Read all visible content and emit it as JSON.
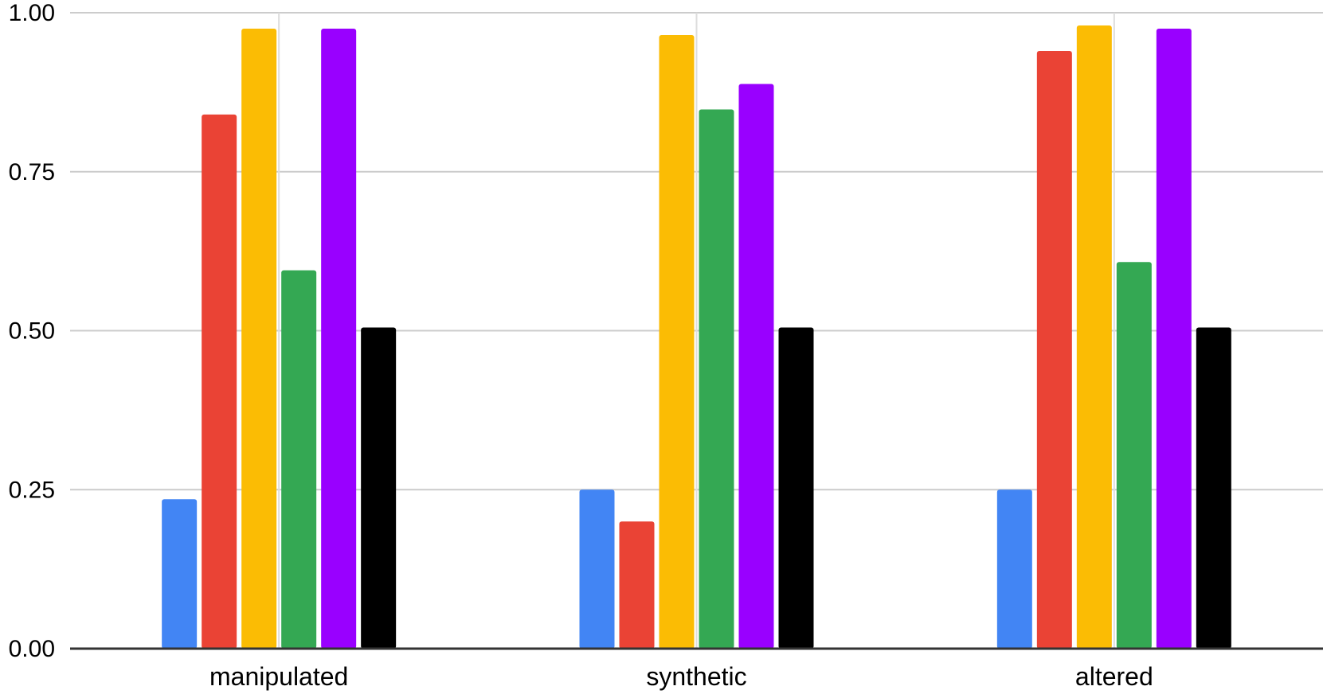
{
  "chart_data": {
    "type": "bar",
    "categories": [
      "manipulated",
      "synthetic",
      "altered"
    ],
    "series": [
      {
        "color": "#4285f4",
        "values": [
          0.235,
          0.25,
          0.25
        ]
      },
      {
        "color": "#ea4335",
        "values": [
          0.84,
          0.2,
          0.94
        ]
      },
      {
        "color": "#fbbc04",
        "values": [
          0.975,
          0.965,
          0.98
        ]
      },
      {
        "color": "#34a853",
        "values": [
          0.595,
          0.848,
          0.608
        ]
      },
      {
        "color": "#9900ff",
        "values": [
          0.975,
          0.888,
          0.975
        ]
      },
      {
        "color": "#000000",
        "values": [
          0.505,
          0.505,
          0.505
        ]
      }
    ],
    "ylim": [
      0,
      1
    ],
    "yticks": [
      "0.00",
      "0.25",
      "0.50",
      "0.75",
      "1.00"
    ],
    "grid": true,
    "legend": "none"
  }
}
